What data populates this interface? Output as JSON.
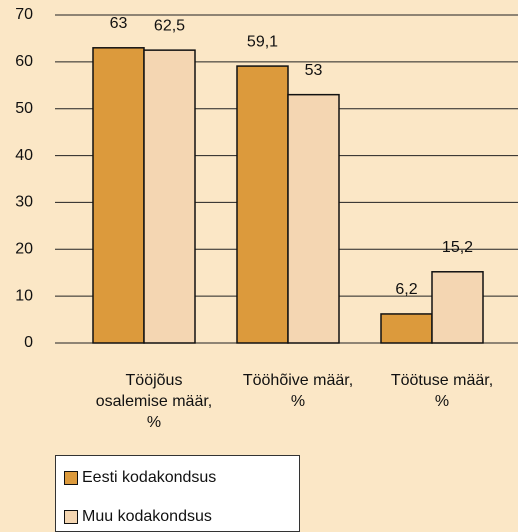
{
  "chart_data": {
    "type": "bar",
    "categories": [
      "Tööjõus osalemise määr, %",
      "Tööhõive määr, %",
      "Töötuse määr, %"
    ],
    "series": [
      {
        "name": "Eesti kodakondsus",
        "color": "#dc9a3c",
        "values": [
          63,
          59.1,
          6.2
        ],
        "value_labels": [
          "63",
          "59,1",
          "6,2"
        ]
      },
      {
        "name": "Muu kodakondsus",
        "color": "#f4d6b2",
        "values": [
          62.5,
          53,
          15.2
        ],
        "value_labels": [
          "62,5",
          "53",
          "15,2"
        ]
      }
    ],
    "ylim": [
      0,
      70
    ],
    "yticks": [
      0,
      10,
      20,
      30,
      40,
      50,
      60,
      70
    ],
    "grid": true
  }
}
